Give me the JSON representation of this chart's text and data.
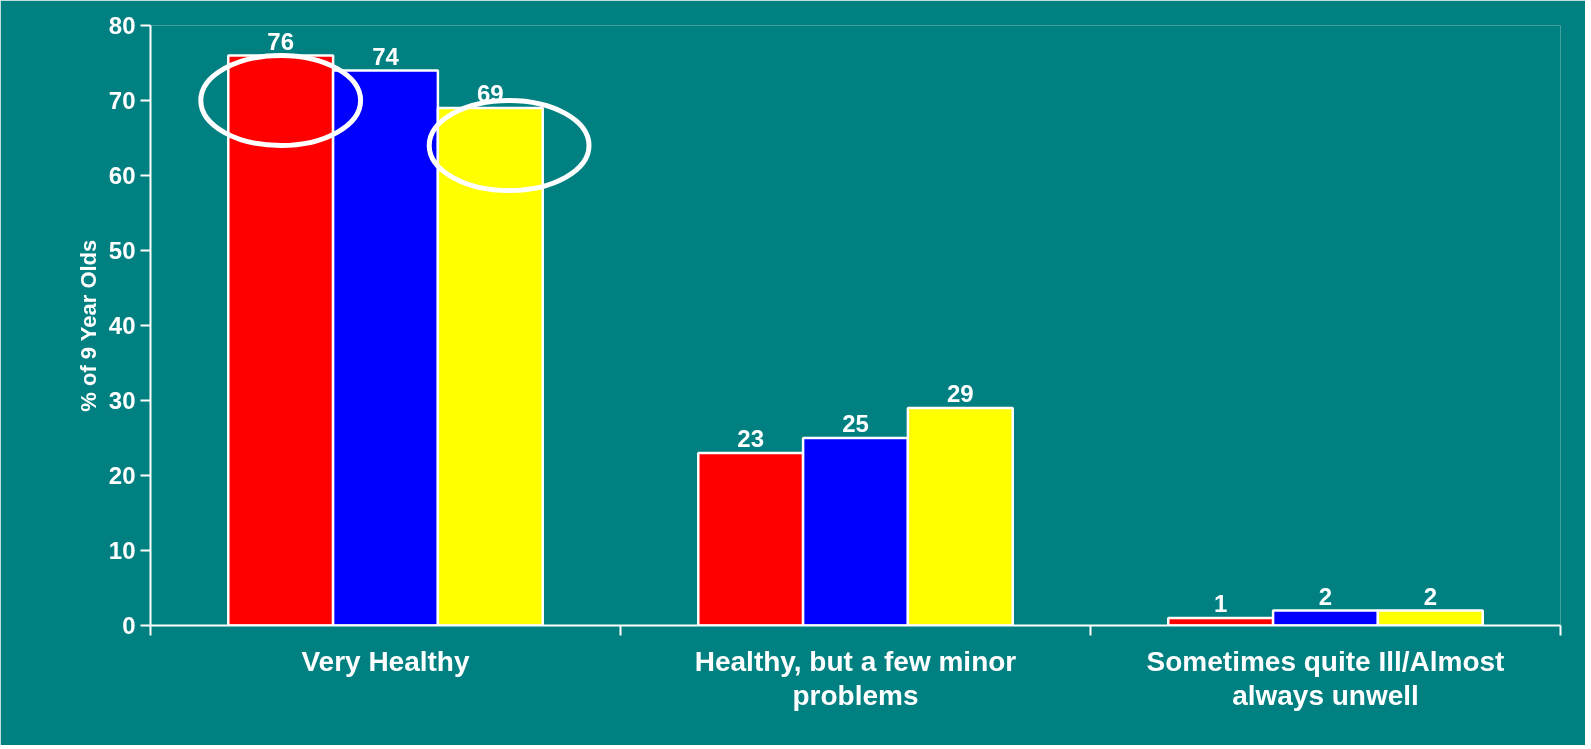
{
  "chart_data": {
    "type": "bar",
    "ylabel": "% of 9 Year Olds",
    "categories": [
      "Very Healthy",
      "Healthy, but a few minor problems",
      "Sometimes quite Ill/Almost always unwell"
    ],
    "series": [
      {
        "color": "#ff0000",
        "values": [
          76,
          23,
          1
        ]
      },
      {
        "color": "#0000ff",
        "values": [
          74,
          25,
          2
        ]
      },
      {
        "color": "#ffff00",
        "values": [
          69,
          29,
          2
        ]
      }
    ],
    "ylim": [
      0,
      80
    ],
    "yticks": [
      0,
      10,
      20,
      30,
      40,
      50,
      60,
      70,
      80
    ],
    "grid": false,
    "data_labels": true
  }
}
